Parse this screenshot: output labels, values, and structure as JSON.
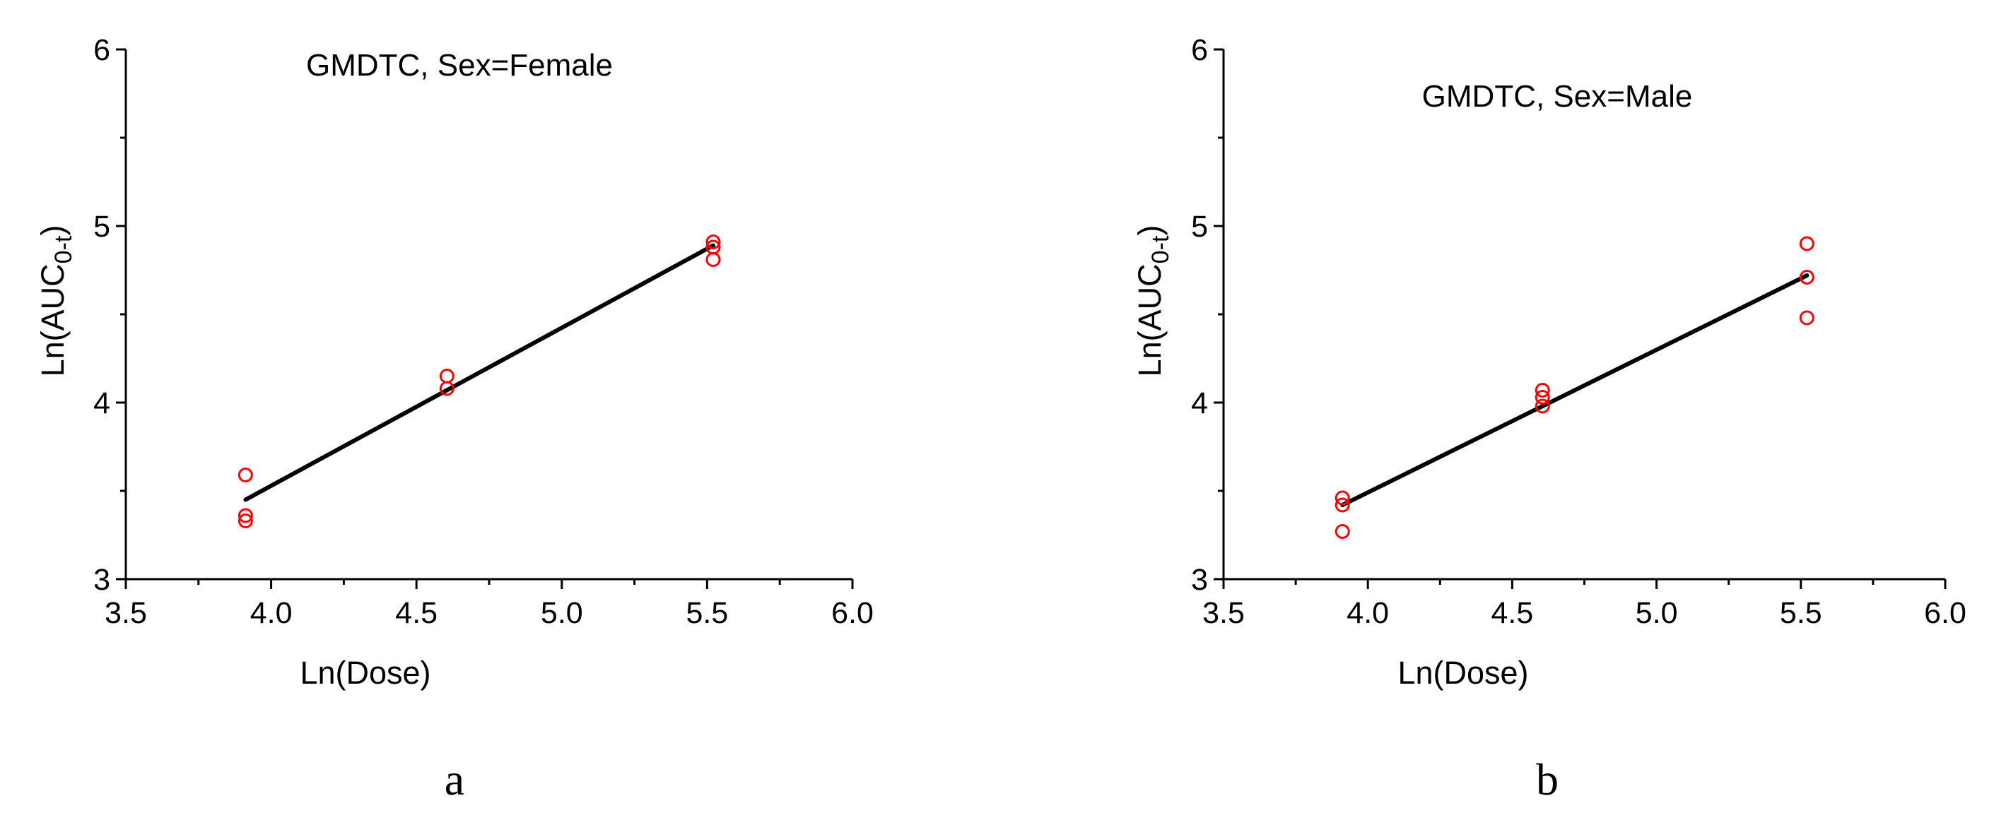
{
  "chart_data": [
    {
      "type": "scatter",
      "panel_label": "a",
      "title": "GMDTC, Sex=Female",
      "xlabel": "Ln(Dose)",
      "ylabel": {
        "prefix": "Ln(AUC",
        "subscript": "0-t",
        "suffix": ")"
      },
      "xlim": [
        3.5,
        6.0
      ],
      "ylim": [
        3,
        6
      ],
      "xticks": [
        "3.5",
        "4.0",
        "4.5",
        "5.0",
        "5.5",
        "6.0"
      ],
      "yticks": [
        "3",
        "4",
        "5",
        "6"
      ],
      "points": [
        {
          "x": 3.912,
          "y": 3.59
        },
        {
          "x": 3.912,
          "y": 3.36
        },
        {
          "x": 3.912,
          "y": 3.33
        },
        {
          "x": 4.605,
          "y": 4.15
        },
        {
          "x": 4.605,
          "y": 4.08
        },
        {
          "x": 5.521,
          "y": 4.91
        },
        {
          "x": 5.521,
          "y": 4.88
        },
        {
          "x": 5.521,
          "y": 4.81
        }
      ],
      "fit": {
        "x1": 3.912,
        "y1": 3.45,
        "x2": 5.521,
        "y2": 4.89
      },
      "point_color": "#ff0000",
      "line_color": "#000000"
    },
    {
      "type": "scatter",
      "panel_label": "b",
      "title": "GMDTC, Sex=Male",
      "xlabel": "Ln(Dose)",
      "ylabel": {
        "prefix": "Ln(AUC",
        "subscript": "0-t",
        "suffix": ")"
      },
      "xlim": [
        3.5,
        6.0
      ],
      "ylim": [
        3,
        6
      ],
      "xticks": [
        "3.5",
        "4.0",
        "4.5",
        "5.0",
        "5.5",
        "6.0"
      ],
      "yticks": [
        "3",
        "4",
        "5",
        "6"
      ],
      "points": [
        {
          "x": 3.912,
          "y": 3.46
        },
        {
          "x": 3.912,
          "y": 3.42
        },
        {
          "x": 3.912,
          "y": 3.27
        },
        {
          "x": 4.605,
          "y": 4.07
        },
        {
          "x": 4.605,
          "y": 4.03
        },
        {
          "x": 4.605,
          "y": 3.98
        },
        {
          "x": 5.521,
          "y": 4.9
        },
        {
          "x": 5.521,
          "y": 4.71
        },
        {
          "x": 5.521,
          "y": 4.48
        }
      ],
      "fit": {
        "x1": 3.912,
        "y1": 3.42,
        "x2": 5.521,
        "y2": 4.72
      },
      "point_color": "#ff0000",
      "line_color": "#000000"
    }
  ]
}
